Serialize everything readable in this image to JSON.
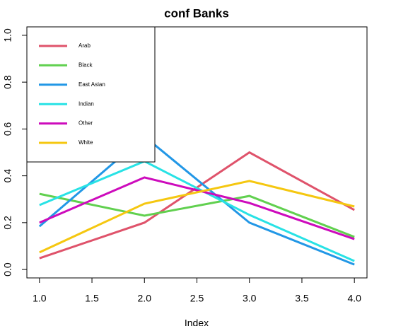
{
  "chart_data": {
    "type": "line",
    "title": "conf Banks",
    "x_label": "Index",
    "x": [
      1,
      2,
      3,
      4
    ],
    "series": [
      {
        "name": "Arab",
        "color": "#DF536B",
        "values": [
          0.048,
          0.2,
          0.5,
          0.254
        ]
      },
      {
        "name": "Black",
        "color": "#61D04F",
        "values": [
          0.323,
          0.23,
          0.314,
          0.139
        ]
      },
      {
        "name": "East Asian",
        "color": "#2297E6",
        "values": [
          0.184,
          0.568,
          0.2,
          0.021
        ]
      },
      {
        "name": "Indian",
        "color": "#28E2E5",
        "values": [
          0.275,
          0.462,
          0.233,
          0.036
        ]
      },
      {
        "name": "Other",
        "color": "#CD0BBC",
        "values": [
          0.2,
          0.393,
          0.284,
          0.13
        ]
      },
      {
        "name": "White",
        "color": "#F5C710",
        "values": [
          0.073,
          0.281,
          0.378,
          0.269
        ]
      }
    ],
    "xlim": [
      0.88,
      4.12
    ],
    "xticks": [
      {
        "value": 1,
        "label": "1.0"
      },
      {
        "value": 1.5,
        "label": "1.5"
      },
      {
        "value": 2,
        "label": "2.0"
      },
      {
        "value": 2.5,
        "label": "2.5"
      },
      {
        "value": 3,
        "label": "3.0"
      },
      {
        "value": 3.5,
        "label": "3.5"
      },
      {
        "value": 4,
        "label": "4.0"
      }
    ],
    "ylim": [
      -0.036,
      1.036
    ],
    "yticks": [
      {
        "value": 0,
        "label": "0.0"
      },
      {
        "value": 0.2,
        "label": "0.2"
      },
      {
        "value": 0.4,
        "label": "0.4"
      },
      {
        "value": 0.6,
        "label": "0.6"
      },
      {
        "value": 0.8,
        "label": "0.8"
      },
      {
        "value": 1,
        "label": "1.0"
      }
    ],
    "legend": "top-left",
    "grid": false
  }
}
